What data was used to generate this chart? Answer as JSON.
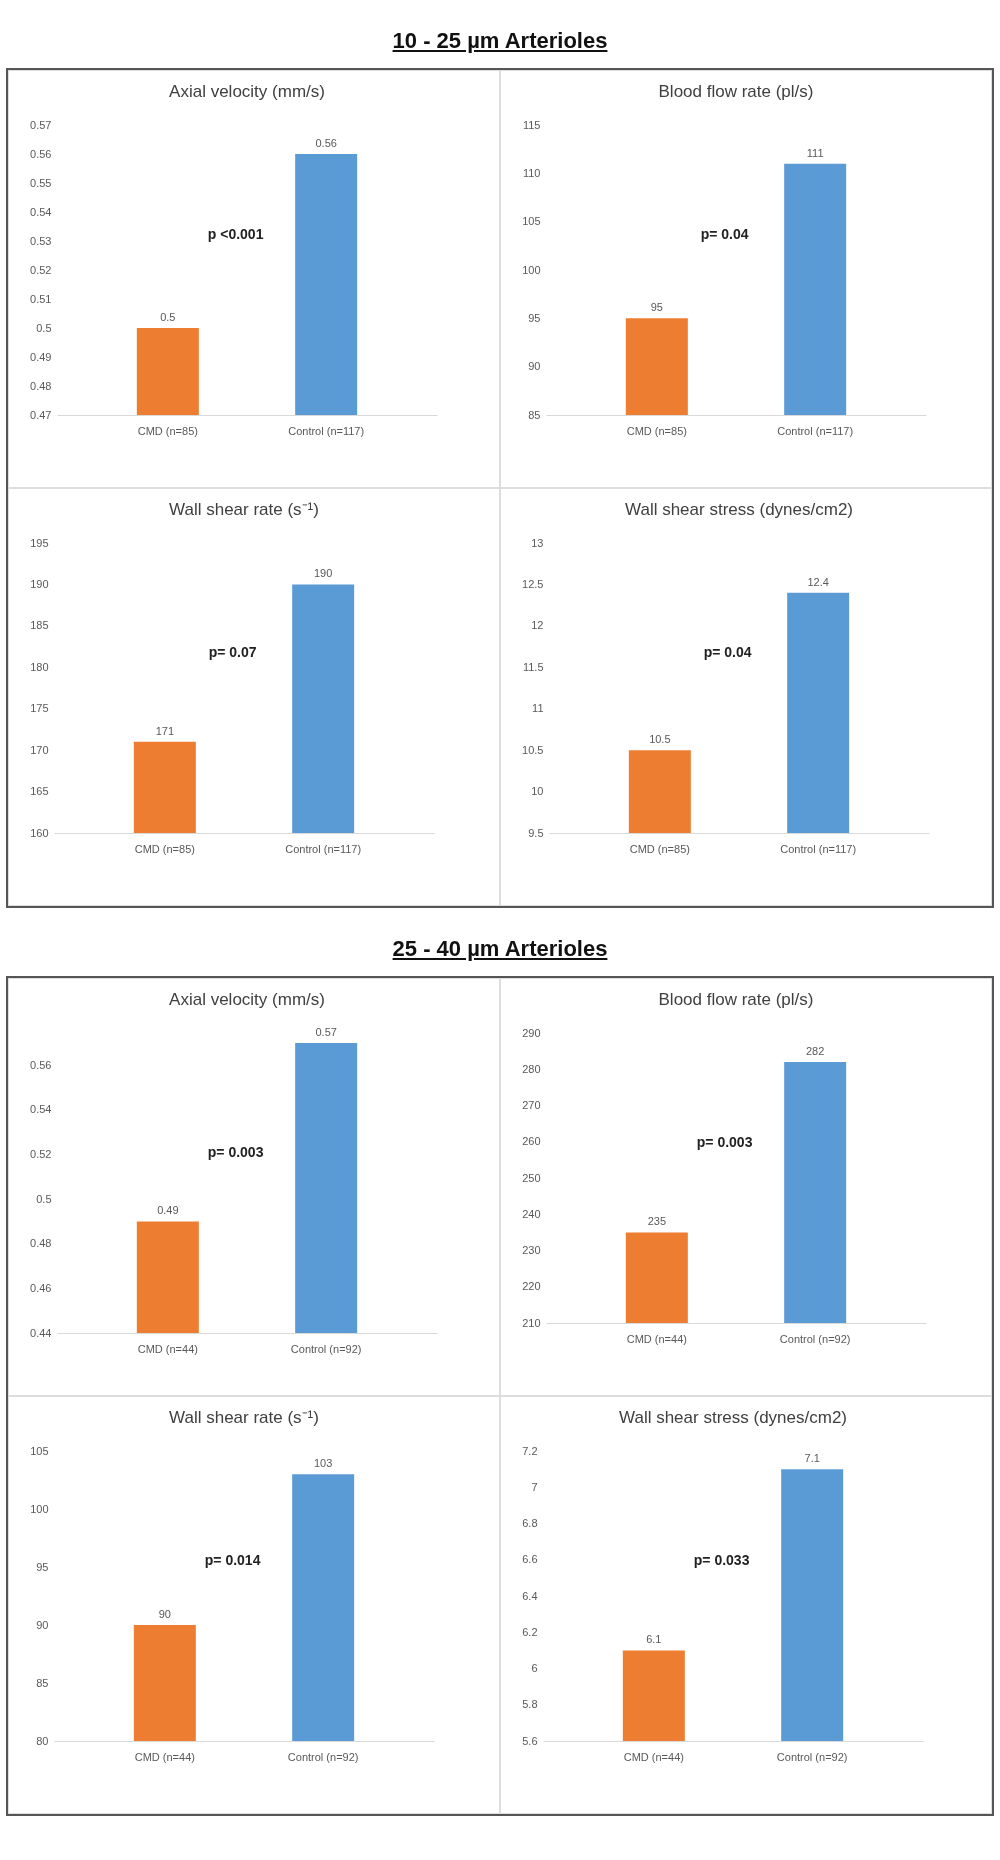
{
  "chart_data": [
    {
      "type": "other",
      "title": "10 - 25 µm Arterioles"
    },
    {
      "type": "bar",
      "title": "Axial velocity (mm/s)",
      "categories": [
        "CMD (n=85)",
        "Control (n=117)"
      ],
      "values": [
        0.5,
        0.56
      ],
      "colors": [
        "#ed7d31",
        "#5b9bd5"
      ],
      "ylim": [
        0.47,
        0.57
      ],
      "yticks": [
        0.47,
        0.48,
        0.49,
        0.5,
        0.51,
        0.52,
        0.53,
        0.54,
        0.55,
        0.56,
        0.57
      ],
      "data_labels": true,
      "annotations": [
        "p <0.001"
      ]
    },
    {
      "type": "bar",
      "title": "Blood flow rate (pl/s)",
      "categories": [
        "CMD (n=85)",
        "Control (n=117)"
      ],
      "values": [
        95,
        111
      ],
      "colors": [
        "#ed7d31",
        "#5b9bd5"
      ],
      "ylim": [
        85,
        115
      ],
      "yticks": [
        85,
        90,
        95,
        100,
        105,
        110,
        115
      ],
      "data_labels": true,
      "annotations": [
        "p= 0.04"
      ]
    },
    {
      "type": "bar",
      "title": "Wall shear rate (s⁻¹)",
      "categories": [
        "CMD (n=85)",
        "Control (n=117)"
      ],
      "values": [
        171,
        190
      ],
      "colors": [
        "#ed7d31",
        "#5b9bd5"
      ],
      "ylim": [
        160,
        195
      ],
      "yticks": [
        160,
        165,
        170,
        175,
        180,
        185,
        190,
        195
      ],
      "data_labels": true,
      "annotations": [
        "p= 0.07"
      ]
    },
    {
      "type": "bar",
      "title": "Wall shear stress (dynes/cm2)",
      "categories": [
        "CMD (n=85)",
        "Control (n=117)"
      ],
      "values": [
        10.5,
        12.4
      ],
      "colors": [
        "#ed7d31",
        "#5b9bd5"
      ],
      "ylim": [
        9.5,
        13
      ],
      "yticks": [
        9.5,
        10,
        10.5,
        11,
        11.5,
        12,
        12.5,
        13
      ],
      "data_labels": true,
      "annotations": [
        "p= 0.04"
      ]
    },
    {
      "type": "other",
      "title": "25 - 40 µm Arterioles"
    },
    {
      "type": "bar",
      "title": "Axial velocity (mm/s)",
      "categories": [
        "CMD (n=44)",
        "Control (n=92)"
      ],
      "values": [
        0.49,
        0.57
      ],
      "colors": [
        "#ed7d31",
        "#5b9bd5"
      ],
      "ylim": [
        0.44,
        0.57
      ],
      "yticks": [
        0.44,
        0.46,
        0.48,
        0.5,
        0.52,
        0.54,
        0.56
      ],
      "data_labels": true,
      "annotations": [
        "p= 0.003"
      ]
    },
    {
      "type": "bar",
      "title": "Blood flow rate (pl/s)",
      "categories": [
        "CMD (n=44)",
        "Control (n=92)"
      ],
      "values": [
        235,
        282
      ],
      "colors": [
        "#ed7d31",
        "#5b9bd5"
      ],
      "ylim": [
        210,
        290
      ],
      "yticks": [
        210,
        220,
        230,
        240,
        250,
        260,
        270,
        280,
        290
      ],
      "data_labels": true,
      "annotations": [
        "p= 0.003"
      ]
    },
    {
      "type": "bar",
      "title": "Wall shear rate (s⁻¹)",
      "categories": [
        "CMD (n=44)",
        "Control (n=92)"
      ],
      "values": [
        90,
        103
      ],
      "colors": [
        "#ed7d31",
        "#5b9bd5"
      ],
      "ylim": [
        80,
        105
      ],
      "yticks": [
        80,
        85,
        90,
        95,
        100,
        105
      ],
      "data_labels": true,
      "annotations": [
        "p= 0.014"
      ]
    },
    {
      "type": "bar",
      "title": "Wall shear stress (dynes/cm2)",
      "categories": [
        "CMD (n=44)",
        "Control (n=92)"
      ],
      "values": [
        6.1,
        7.1
      ],
      "colors": [
        "#ed7d31",
        "#5b9bd5"
      ],
      "ylim": [
        5.6,
        7.2
      ],
      "yticks": [
        5.6,
        5.8,
        6,
        6.2,
        6.4,
        6.6,
        6.8,
        7,
        7.2
      ],
      "data_labels": true,
      "annotations": [
        "p= 0.033"
      ]
    }
  ]
}
